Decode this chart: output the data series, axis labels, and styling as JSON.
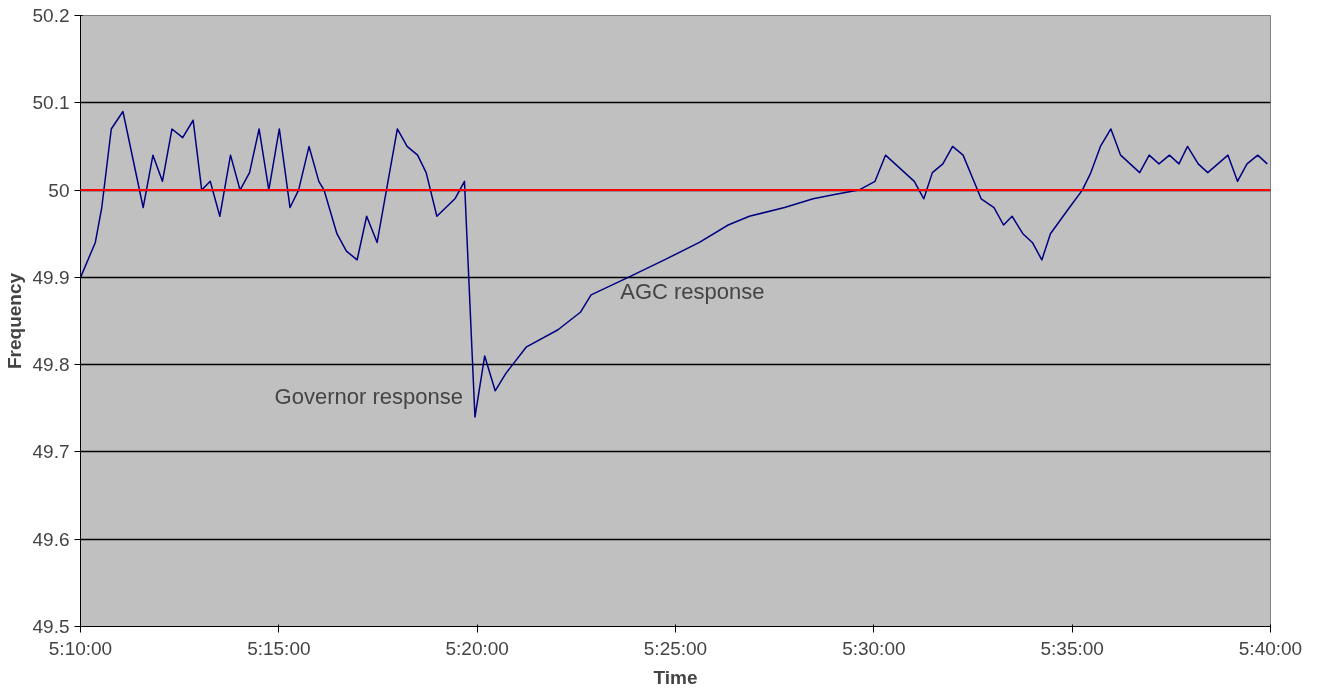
{
  "chart_data": {
    "type": "line",
    "xlabel": "Time",
    "ylabel": "Frequency",
    "xlim": [
      5.1666667,
      5.6666667
    ],
    "ylim": [
      49.5,
      50.2
    ],
    "xticks": [
      {
        "value": 5.1666667,
        "label": "5:10:00"
      },
      {
        "value": 5.25,
        "label": "5:15:00"
      },
      {
        "value": 5.3333333,
        "label": "5:20:00"
      },
      {
        "value": 5.4166667,
        "label": "5:25:00"
      },
      {
        "value": 5.5,
        "label": "5:30:00"
      },
      {
        "value": 5.5833333,
        "label": "5:35:00"
      },
      {
        "value": 5.6666667,
        "label": "5:40:00"
      }
    ],
    "yticks": [
      {
        "value": 49.5,
        "label": "49.5"
      },
      {
        "value": 49.6,
        "label": "49.6"
      },
      {
        "value": 49.7,
        "label": "49.7"
      },
      {
        "value": 49.8,
        "label": "49.8"
      },
      {
        "value": 49.9,
        "label": "49.9"
      },
      {
        "value": 50,
        "label": "50"
      },
      {
        "value": 50.1,
        "label": "50.1"
      },
      {
        "value": 50.2,
        "label": "50.2"
      }
    ],
    "grid": "y",
    "marker": "none",
    "line_style": "solid",
    "ref_lines": [
      {
        "axis": "y",
        "value": 50,
        "label": null,
        "color": "#ff0000"
      }
    ],
    "annotations": [
      {
        "text": "Governor response",
        "x": 5.3324,
        "y": 49.74
      },
      {
        "text": "AGC response",
        "x": 5.3968,
        "y": 49.9
      }
    ],
    "series": [
      {
        "color": "#000080",
        "x": [
          5.1667,
          5.1729,
          5.1756,
          5.1796,
          5.1845,
          5.193,
          5.1971,
          5.2011,
          5.2051,
          5.2096,
          5.214,
          5.2176,
          5.2212,
          5.2252,
          5.2297,
          5.2337,
          5.2377,
          5.2417,
          5.2458,
          5.2502,
          5.2547,
          5.2583,
          5.2627,
          5.2668,
          5.269,
          5.2744,
          5.2784,
          5.2829,
          5.2869,
          5.2913,
          5.2998,
          5.3039,
          5.3083,
          5.3119,
          5.3164,
          5.324,
          5.328,
          5.3324,
          5.3365,
          5.3409,
          5.3454,
          5.3539,
          5.3673,
          5.3767,
          5.3812,
          5.3968,
          5.412,
          5.4267,
          5.4388,
          5.4477,
          5.4625,
          5.4745,
          5.4835,
          5.4937,
          5.5005,
          5.5049,
          5.517,
          5.521,
          5.5246,
          5.529,
          5.5331,
          5.5375,
          5.5451,
          5.5505,
          5.5545,
          5.5581,
          5.5626,
          5.5666,
          5.5706,
          5.5742,
          5.5822,
          5.5876,
          5.5912,
          5.5952,
          5.5996,
          5.6037,
          5.6117,
          5.6157,
          5.6198,
          5.6242,
          5.6282,
          5.6318,
          5.6363,
          5.6403,
          5.6488,
          5.6528,
          5.6568,
          5.6613,
          5.6653
        ],
        "values": [
          49.9,
          49.94,
          49.98,
          50.07,
          50.09,
          49.98,
          50.04,
          50.01,
          50.07,
          50.06,
          50.08,
          50.0,
          50.01,
          49.97,
          50.04,
          50.0,
          50.02,
          50.07,
          50.0,
          50.07,
          49.98,
          50.0,
          50.05,
          50.01,
          50.0,
          49.95,
          49.93,
          49.92,
          49.97,
          49.94,
          50.07,
          50.05,
          50.04,
          50.02,
          49.97,
          49.99,
          50.01,
          49.74,
          49.81,
          49.77,
          49.79,
          49.82,
          49.84,
          49.86,
          49.88,
          49.9,
          49.92,
          49.94,
          49.96,
          49.97,
          49.98,
          49.99,
          49.995,
          50.0,
          50.01,
          50.04,
          50.01,
          49.99,
          50.02,
          50.03,
          50.05,
          50.04,
          49.99,
          49.98,
          49.96,
          49.97,
          49.95,
          49.94,
          49.92,
          49.95,
          49.98,
          50.0,
          50.02,
          50.05,
          50.07,
          50.04,
          50.02,
          50.04,
          50.03,
          50.04,
          50.03,
          50.05,
          50.03,
          50.02,
          50.04,
          50.01,
          50.03,
          50.04,
          50.03
        ]
      }
    ]
  }
}
